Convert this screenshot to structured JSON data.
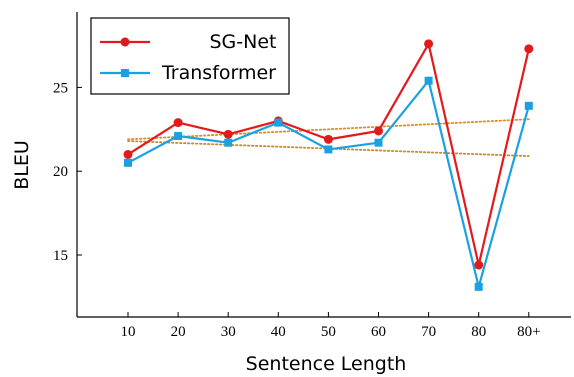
{
  "chart_data": {
    "type": "line",
    "categories": [
      "10",
      "20",
      "30",
      "40",
      "50",
      "60",
      "70",
      "80",
      "80+"
    ],
    "series": [
      {
        "name": "SG-Net",
        "color": "#e31a1c",
        "marker": "circle",
        "values": [
          21.0,
          22.9,
          22.2,
          23.0,
          21.9,
          22.4,
          27.6,
          14.4,
          27.3
        ]
      },
      {
        "name": "Transformer",
        "color": "#1ba1e2",
        "marker": "square",
        "values": [
          20.5,
          22.1,
          21.7,
          22.9,
          21.3,
          21.7,
          25.4,
          13.1,
          23.9
        ]
      }
    ],
    "trendlines": [
      {
        "series": "SG-Net",
        "color": "#e08a1e",
        "from": [
          0,
          21.9
        ],
        "to": [
          8,
          23.1
        ]
      },
      {
        "series": "Transformer",
        "color": "#c8892a",
        "from": [
          0,
          21.8
        ],
        "to": [
          8,
          20.9
        ]
      }
    ],
    "xlabel": "Sentence Length",
    "ylabel": "BLEU",
    "yticks": [
      15,
      20,
      25
    ],
    "ylim": [
      11.3,
      29.5
    ],
    "grid": false,
    "legend_position": "top-left"
  }
}
